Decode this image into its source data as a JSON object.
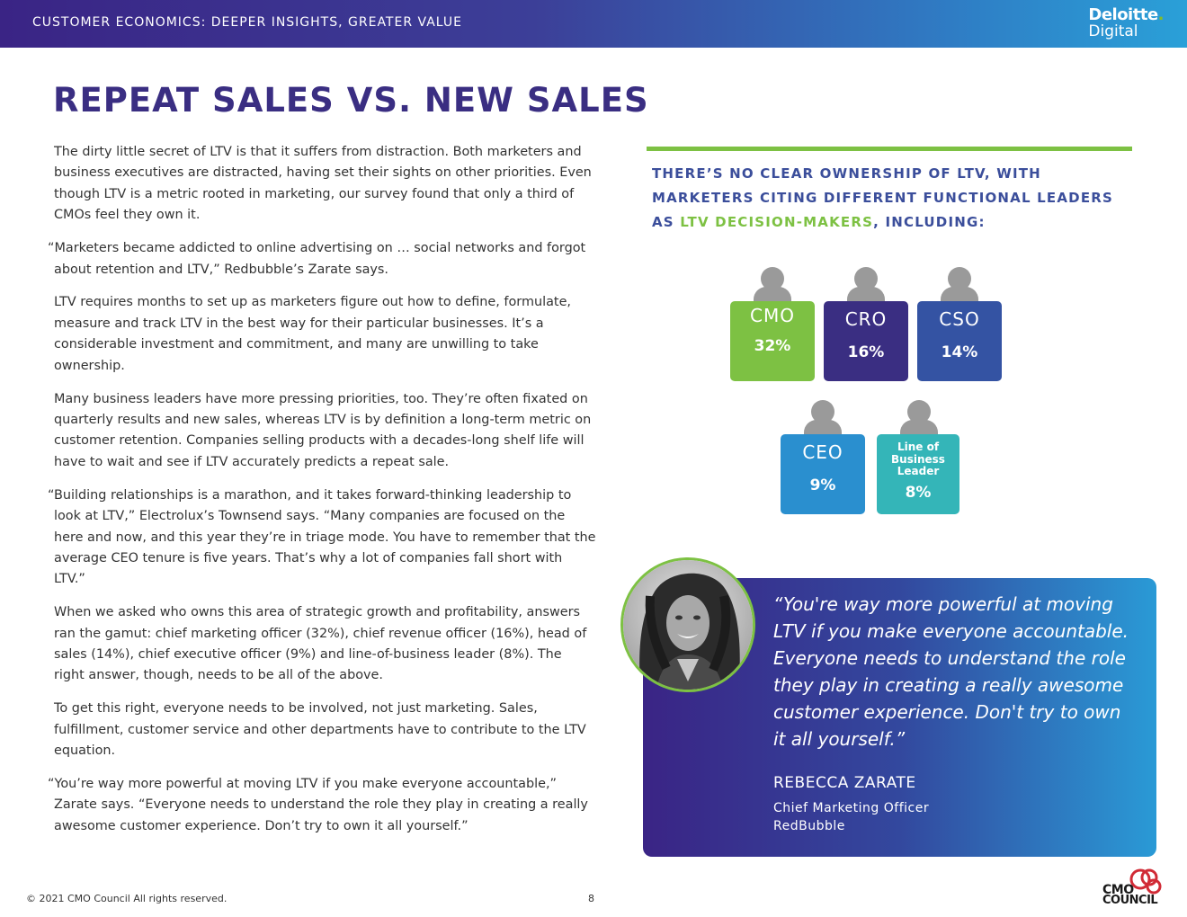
{
  "header": {
    "title": "CUSTOMER ECONOMICS: DEEPER INSIGHTS, GREATER VALUE",
    "brand_top": "Deloitte",
    "brand_dot": ".",
    "brand_bottom": "Digital"
  },
  "page_title": "REPEAT SALES VS. NEW SALES",
  "body": {
    "p1": "The dirty little secret of LTV is that it suffers from distraction. Both marketers and business executives are distracted, having set their sights on other priorities. Even though LTV is a metric rooted in marketing, our survey found that only a third of CMOs feel they own it.",
    "p2": "“Marketers became addicted to online advertising on … social networks and forgot about retention and LTV,” Redbubble’s Zarate says.",
    "p3": "LTV requires months to set up as marketers figure out how to define, formulate, measure and track LTV in the best way for their particular businesses. It’s a considerable investment and commitment, and many are unwilling to take ownership.",
    "p4": "Many business leaders have more pressing priorities, too. They’re often fixated on quarterly results and new sales, whereas LTV is by definition a long-term metric on customer retention. Companies selling products with a decades-long shelf life will have to wait and see if LTV accurately predicts a repeat sale.",
    "p5": "“Building relationships is a marathon, and it takes forward-thinking leadership to look at LTV,” Electrolux’s Townsend says. “Many companies are focused on the here and now, and this year they’re in triage mode. You have to remember that the average CEO tenure is five years. That’s why a lot of companies fall short with LTV.”",
    "p6": "When we asked who owns this area of strategic growth and profitability, answers ran the gamut: chief marketing officer (32%), chief revenue officer (16%), head of sales (14%), chief executive officer (9%) and line-of-business leader (8%). The right answer, though, needs to be all of the above.",
    "p7": "To get this right, everyone needs to be involved, not just marketing. Sales, fulfillment, customer service and other departments have to contribute to the LTV equation.",
    "p8": "“You’re way more powerful at moving LTV if you make everyone accountable,” Zarate says. “Everyone needs to understand the role they play in creating a really awesome customer experience. Don’t try to own it all yourself.”"
  },
  "side": {
    "heading_part1": "THERE’S NO CLEAR OWNERSHIP OF LTV, WITH MARKETERS CITING DIFFERENT FUNCTIONAL LEADERS AS ",
    "heading_highlight": "LTV DECISION-MAKERS",
    "heading_part2": ", INCLUDING:",
    "roles": [
      {
        "label": "CMO",
        "value": "32%",
        "color": "#7dc143"
      },
      {
        "label": "CRO",
        "value": "16%",
        "color": "#3a2e82"
      },
      {
        "label": "CSO",
        "value": "14%",
        "color": "#3453a3"
      },
      {
        "label": "CEO",
        "value": "9%",
        "color": "#2a8fcf"
      },
      {
        "label": "Line of Business Leader",
        "value": "8%",
        "color": "#34b5b8"
      }
    ]
  },
  "quote": {
    "text": "“You're way more powerful at moving LTV if you make everyone accountable. Everyone needs to understand the role they play in creating a really awesome customer experience. Don't try to own it all yourself.”",
    "name": "REBECCA ZARATE",
    "role": "Chief Marketing Officer",
    "company": "RedBubble"
  },
  "footer": {
    "copyright": "© 2021 CMO Council  All rights reserved.",
    "page": "8",
    "logo_line1": "CMO",
    "logo_line2": "COUNCIL"
  }
}
